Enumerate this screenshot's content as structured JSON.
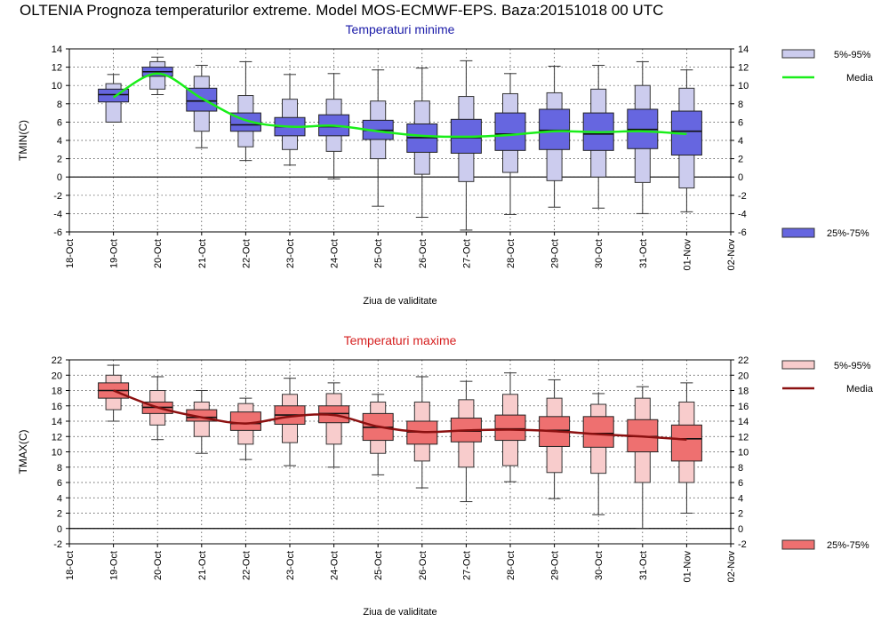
{
  "page": {
    "title": "OLTENIA  Prognoza temperaturilor extreme.  Model MOS-ECMWF-EPS. Baza:20151018 00 UTC"
  },
  "chart_data": [
    {
      "type": "box",
      "title": "Temperaturi minime",
      "title_color": "#1a1aa8",
      "ylabel": "TMIN(C)",
      "xlabel": "Ziua de validitate",
      "ylim": [
        -6,
        14
      ],
      "yticks": [
        -6,
        -4,
        -2,
        0,
        2,
        4,
        6,
        8,
        10,
        12,
        14
      ],
      "categories": [
        "18-Oct",
        "19-Oct",
        "20-Oct",
        "21-Oct",
        "22-Oct",
        "23-Oct",
        "24-Oct",
        "25-Oct",
        "26-Oct",
        "27-Oct",
        "28-Oct",
        "29-Oct",
        "30-Oct",
        "31-Oct",
        "01-Nov",
        "02-Nov"
      ],
      "box_color": "#6666e0",
      "whisker_box_color": "#ccccee",
      "line_color": "#1aee1a",
      "grid": true,
      "legend": [
        "5%-95%",
        "Media",
        "25%-75%"
      ],
      "legend_position": "right",
      "boxes": [
        {
          "day": "19-Oct",
          "p5": 6.0,
          "p25": 8.2,
          "median": 9.0,
          "p75": 9.6,
          "p95": 10.2,
          "min": 6.0,
          "max": 11.2
        },
        {
          "day": "20-Oct",
          "p5": 9.6,
          "p25": 11.0,
          "median": 11.5,
          "p75": 12.0,
          "p95": 12.6,
          "min": 9.0,
          "max": 13.1
        },
        {
          "day": "21-Oct",
          "p5": 5.0,
          "p25": 7.2,
          "median": 8.3,
          "p75": 9.7,
          "p95": 11.0,
          "min": 3.2,
          "max": 12.2
        },
        {
          "day": "22-Oct",
          "p5": 3.3,
          "p25": 5.0,
          "median": 5.7,
          "p75": 7.0,
          "p95": 8.9,
          "min": 1.8,
          "max": 12.6
        },
        {
          "day": "23-Oct",
          "p5": 3.0,
          "p25": 4.5,
          "median": 5.5,
          "p75": 6.5,
          "p95": 8.5,
          "min": 1.3,
          "max": 11.2
        },
        {
          "day": "24-Oct",
          "p5": 2.8,
          "p25": 4.5,
          "median": 5.5,
          "p75": 6.8,
          "p95": 8.5,
          "min": -0.2,
          "max": 11.3
        },
        {
          "day": "25-Oct",
          "p5": 2.0,
          "p25": 4.1,
          "median": 5.1,
          "p75": 6.2,
          "p95": 8.3,
          "min": -3.2,
          "max": 11.7
        },
        {
          "day": "26-Oct",
          "p5": 0.3,
          "p25": 2.7,
          "median": 4.3,
          "p75": 5.8,
          "p95": 8.3,
          "min": -4.4,
          "max": 11.9
        },
        {
          "day": "27-Oct",
          "p5": -0.5,
          "p25": 2.6,
          "median": 4.3,
          "p75": 6.3,
          "p95": 8.8,
          "min": -5.8,
          "max": 12.7
        },
        {
          "day": "28-Oct",
          "p5": 0.5,
          "p25": 2.9,
          "median": 4.7,
          "p75": 7.0,
          "p95": 9.1,
          "min": -4.1,
          "max": 11.3
        },
        {
          "day": "29-Oct",
          "p5": -0.4,
          "p25": 3.0,
          "median": 5.1,
          "p75": 7.4,
          "p95": 9.2,
          "min": -3.3,
          "max": 12.1
        },
        {
          "day": "30-Oct",
          "p5": 0.0,
          "p25": 2.9,
          "median": 4.7,
          "p75": 7.0,
          "p95": 9.6,
          "min": -3.4,
          "max": 12.2
        },
        {
          "day": "31-Oct",
          "p5": -0.6,
          "p25": 3.1,
          "median": 5.2,
          "p75": 7.4,
          "p95": 10.0,
          "min": -4.0,
          "max": 12.6
        },
        {
          "day": "01-Nov",
          "p5": -1.2,
          "p25": 2.4,
          "median": 5.0,
          "p75": 7.2,
          "p95": 9.7,
          "min": -3.8,
          "max": 11.7
        }
      ],
      "mean": [
        {
          "day": "19-Oct",
          "value": 8.7
        },
        {
          "day": "20-Oct",
          "value": 11.3
        },
        {
          "day": "21-Oct",
          "value": 8.6
        },
        {
          "day": "22-Oct",
          "value": 6.2
        },
        {
          "day": "23-Oct",
          "value": 5.5
        },
        {
          "day": "24-Oct",
          "value": 5.6
        },
        {
          "day": "25-Oct",
          "value": 5.0
        },
        {
          "day": "26-Oct",
          "value": 4.5
        },
        {
          "day": "27-Oct",
          "value": 4.4
        },
        {
          "day": "28-Oct",
          "value": 4.6
        },
        {
          "day": "29-Oct",
          "value": 5.0
        },
        {
          "day": "30-Oct",
          "value": 4.9
        },
        {
          "day": "31-Oct",
          "value": 5.0
        },
        {
          "day": "01-Nov",
          "value": 4.7
        }
      ]
    },
    {
      "type": "box",
      "title": "Temperaturi maxime",
      "title_color": "#d62020",
      "ylabel": "TMAX(C)",
      "xlabel": "Ziua de validitate",
      "ylim": [
        -2,
        22
      ],
      "yticks": [
        -2,
        0,
        2,
        4,
        6,
        8,
        10,
        12,
        14,
        16,
        18,
        20,
        22
      ],
      "categories": [
        "18-Oct",
        "19-Oct",
        "20-Oct",
        "21-Oct",
        "22-Oct",
        "23-Oct",
        "24-Oct",
        "25-Oct",
        "26-Oct",
        "27-Oct",
        "28-Oct",
        "29-Oct",
        "30-Oct",
        "31-Oct",
        "01-Nov",
        "02-Nov"
      ],
      "box_color": "#ee7070",
      "whisker_box_color": "#f8cccc",
      "line_color": "#8b1010",
      "grid": true,
      "legend": [
        "5%-95%",
        "Media",
        "25%-75%"
      ],
      "legend_position": "right",
      "boxes": [
        {
          "day": "19-Oct",
          "p5": 15.5,
          "p25": 17.0,
          "median": 18.0,
          "p75": 19.0,
          "p95": 20.0,
          "min": 14.0,
          "max": 21.3
        },
        {
          "day": "20-Oct",
          "p5": 13.5,
          "p25": 15.0,
          "median": 15.8,
          "p75": 16.5,
          "p95": 18.0,
          "min": 11.6,
          "max": 19.8
        },
        {
          "day": "21-Oct",
          "p5": 12.0,
          "p25": 14.0,
          "median": 14.5,
          "p75": 15.5,
          "p95": 16.5,
          "min": 9.8,
          "max": 18.0
        },
        {
          "day": "22-Oct",
          "p5": 11.0,
          "p25": 12.8,
          "median": 13.7,
          "p75": 15.2,
          "p95": 16.3,
          "min": 9.0,
          "max": 17.0
        },
        {
          "day": "23-Oct",
          "p5": 11.2,
          "p25": 13.6,
          "median": 14.8,
          "p75": 16.0,
          "p95": 17.5,
          "min": 8.2,
          "max": 19.6
        },
        {
          "day": "24-Oct",
          "p5": 11.0,
          "p25": 13.8,
          "median": 15.0,
          "p75": 16.0,
          "p95": 17.6,
          "min": 8.0,
          "max": 19.0
        },
        {
          "day": "25-Oct",
          "p5": 9.8,
          "p25": 11.5,
          "median": 13.2,
          "p75": 15.0,
          "p95": 16.5,
          "min": 7.0,
          "max": 17.5
        },
        {
          "day": "26-Oct",
          "p5": 8.8,
          "p25": 11.0,
          "median": 12.6,
          "p75": 14.0,
          "p95": 16.5,
          "min": 5.3,
          "max": 19.8
        },
        {
          "day": "27-Oct",
          "p5": 8.0,
          "p25": 11.3,
          "median": 12.7,
          "p75": 14.4,
          "p95": 16.8,
          "min": 3.5,
          "max": 19.2
        },
        {
          "day": "28-Oct",
          "p5": 8.2,
          "p25": 11.5,
          "median": 13.0,
          "p75": 14.8,
          "p95": 17.5,
          "min": 6.1,
          "max": 20.3
        },
        {
          "day": "29-Oct",
          "p5": 7.3,
          "p25": 10.7,
          "median": 12.8,
          "p75": 14.6,
          "p95": 17.0,
          "min": 3.9,
          "max": 19.4
        },
        {
          "day": "30-Oct",
          "p5": 7.2,
          "p25": 10.6,
          "median": 12.4,
          "p75": 14.6,
          "p95": 16.2,
          "min": 1.8,
          "max": 17.6
        },
        {
          "day": "31-Oct",
          "p5": 6.0,
          "p25": 10.0,
          "median": 12.0,
          "p75": 14.2,
          "p95": 17.0,
          "min": 0.0,
          "max": 18.5
        },
        {
          "day": "01-Nov",
          "p5": 6.0,
          "p25": 8.8,
          "median": 11.7,
          "p75": 13.5,
          "p95": 16.5,
          "min": 2.0,
          "max": 19.0
        }
      ],
      "mean": [
        {
          "day": "19-Oct",
          "value": 18.0
        },
        {
          "day": "20-Oct",
          "value": 15.8
        },
        {
          "day": "21-Oct",
          "value": 14.5
        },
        {
          "day": "22-Oct",
          "value": 13.7
        },
        {
          "day": "23-Oct",
          "value": 14.6
        },
        {
          "day": "24-Oct",
          "value": 14.8
        },
        {
          "day": "25-Oct",
          "value": 13.3
        },
        {
          "day": "26-Oct",
          "value": 12.6
        },
        {
          "day": "27-Oct",
          "value": 12.8
        },
        {
          "day": "28-Oct",
          "value": 12.9
        },
        {
          "day": "29-Oct",
          "value": 12.7
        },
        {
          "day": "30-Oct",
          "value": 12.3
        },
        {
          "day": "31-Oct",
          "value": 12.0
        },
        {
          "day": "01-Nov",
          "value": 11.6
        }
      ]
    }
  ]
}
